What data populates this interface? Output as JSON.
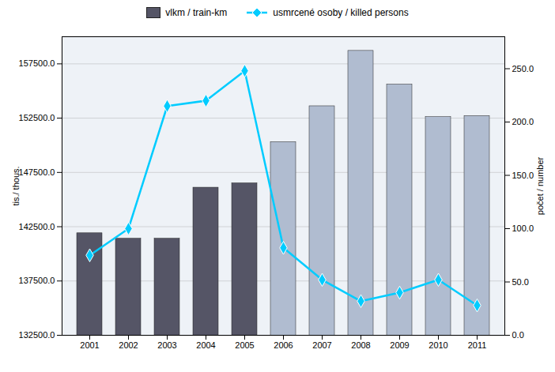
{
  "chart_data": {
    "type": "bar",
    "categories": [
      "2001",
      "2002",
      "2003",
      "2004",
      "2005",
      "2006",
      "2007",
      "2008",
      "2009",
      "2010",
      "2011"
    ],
    "ylabel": "tis./ thous.",
    "y2label": "počet / number",
    "series": [
      {
        "name": "vlkm / train-km",
        "type": "bar",
        "colors": [
          "#555566",
          "#555566",
          "#555566",
          "#555566",
          "#555566",
          "#b0bcd0",
          "#b0bcd0",
          "#b0bcd0",
          "#b0bcd0",
          "#b0bcd0",
          "#b0bcd0"
        ],
        "values": [
          141900,
          141400,
          141400,
          146100,
          146500,
          150300,
          153600,
          158700,
          155600,
          152600,
          152700
        ]
      },
      {
        "name": "usmrcené osoby / killed persons",
        "type": "line",
        "axis": "y2",
        "color": "#00ccff",
        "marker": "diamond",
        "values": [
          75,
          100,
          215,
          220,
          248,
          82,
          52,
          32,
          40,
          52,
          28
        ]
      }
    ],
    "ylim": [
      132500.0,
      160000.0
    ],
    "yticks": [
      {
        "value": 132500.0,
        "label": "132500.0"
      },
      {
        "value": 137500.0,
        "label": "137500.0"
      },
      {
        "value": 142500.0,
        "label": "142500.0"
      },
      {
        "value": 147500.0,
        "label": "147500.0"
      },
      {
        "value": 152500.0,
        "label": "152500.0"
      },
      {
        "value": 157500.0,
        "label": "157500.0"
      }
    ],
    "y2lim": [
      0.0,
      280.0
    ],
    "y2ticks": [
      {
        "value": 0.0,
        "label": "0.0"
      },
      {
        "value": 50.0,
        "label": "50.0"
      },
      {
        "value": 100.0,
        "label": "100.0"
      },
      {
        "value": 150.0,
        "label": "150.0"
      },
      {
        "value": 200.0,
        "label": "200.0"
      },
      {
        "value": 250.0,
        "label": "250.0"
      }
    ],
    "grid": true,
    "legend": "top"
  }
}
